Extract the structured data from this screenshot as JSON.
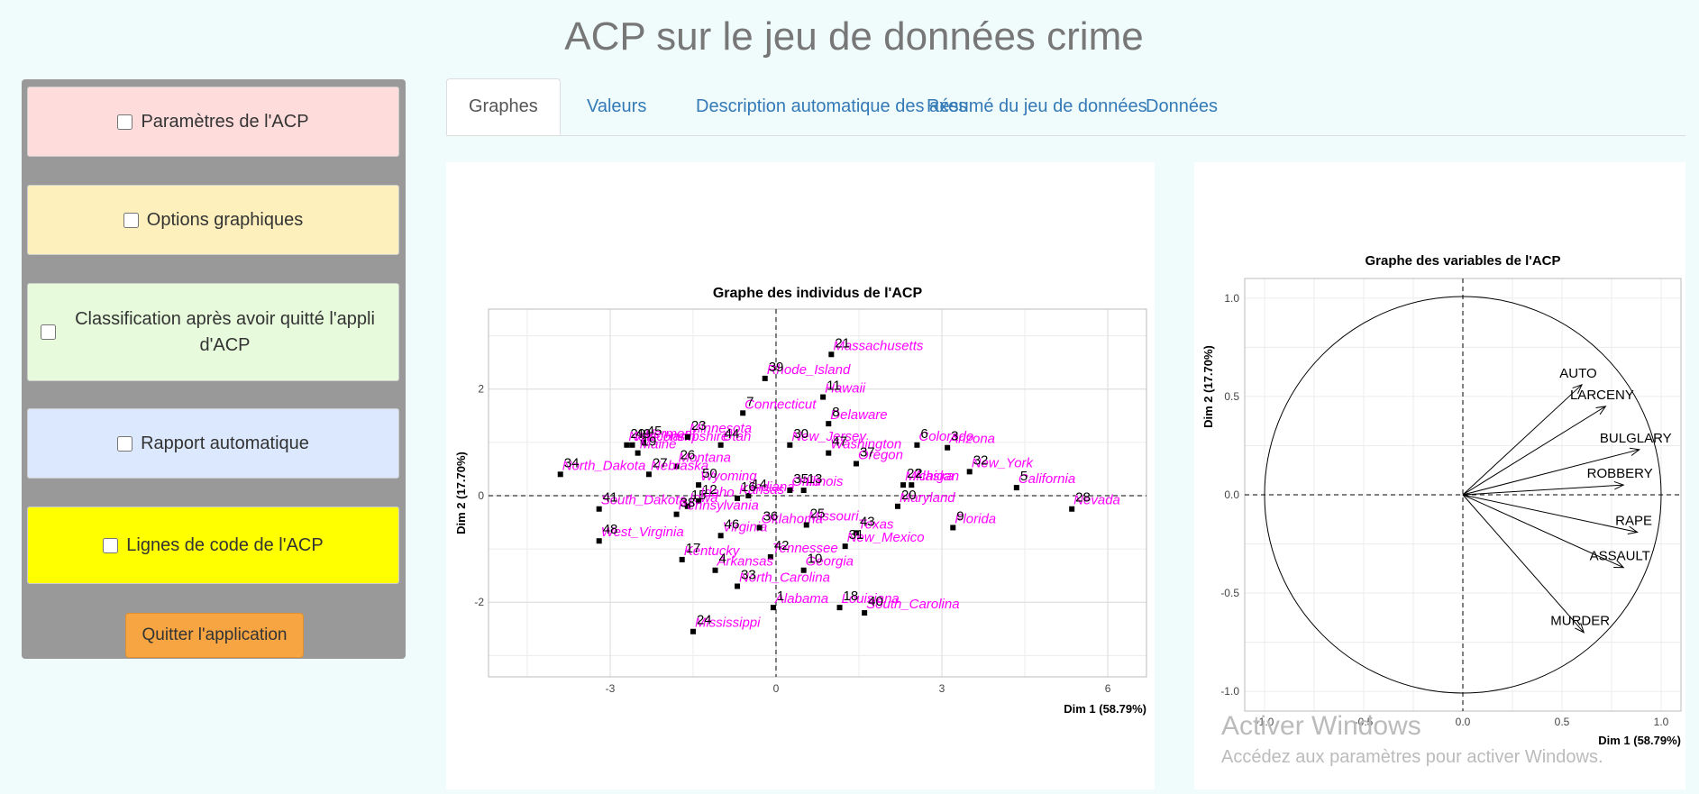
{
  "page": {
    "title": "ACP sur le jeu de données crime"
  },
  "sidebar": {
    "panels": [
      {
        "label": "Paramètres de l'ACP",
        "color": "#ffdcdc"
      },
      {
        "label": "Options graphiques",
        "color": "#fdf0bd"
      },
      {
        "label": "Classification après avoir quitté l'appli d'ACP",
        "color": "#e7fadc"
      },
      {
        "label": "Rapport automatique",
        "color": "#dce8fd"
      },
      {
        "label": "Lignes de code de l'ACP",
        "color": "#ffff00"
      }
    ],
    "quit_label": "Quitter l'application"
  },
  "tabs": [
    {
      "label": "Graphes",
      "active": true
    },
    {
      "label": "Valeurs",
      "active": false
    },
    {
      "label": "Description automatique des axes",
      "active": false
    },
    {
      "label": "Résumé du jeu de données",
      "active": false
    },
    {
      "label": "Données",
      "active": false
    }
  ],
  "watermark": {
    "line1": "Activer Windows",
    "line2": "Accédez aux paramètres pour activer Windows."
  },
  "chart_data": [
    {
      "type": "scatter",
      "title": "Graphe des individus de l'ACP",
      "xlabel": "Dim 1 (58.79%)",
      "ylabel": "Dim 2 (17.70%)",
      "xlim": [
        -5.2,
        6.7
      ],
      "ylim": [
        -3.4,
        3.5
      ],
      "xticks": [
        -3,
        0,
        3,
        6
      ],
      "yticks": [
        -2,
        0,
        2
      ],
      "grid": true,
      "label_color": "#ff00ff",
      "number_color": "#000000",
      "points": [
        {
          "id": "34",
          "name": "North_Dakota",
          "x": -3.9,
          "y": 0.4
        },
        {
          "id": "29",
          "name": "New_Hampshire",
          "x": -2.7,
          "y": 0.95
        },
        {
          "id": "45",
          "name": "Vermont",
          "x": -2.4,
          "y": 1.0
        },
        {
          "id": "49",
          "name": "Wisconsin",
          "x": -2.6,
          "y": 0.95
        },
        {
          "id": "23",
          "name": "Minnesota",
          "x": -1.6,
          "y": 1.1
        },
        {
          "id": "44",
          "name": "Utah",
          "x": -1.0,
          "y": 0.95
        },
        {
          "id": "19",
          "name": "Maine",
          "x": -2.5,
          "y": 0.8
        },
        {
          "id": "26",
          "name": "Montana",
          "x": -1.8,
          "y": 0.55
        },
        {
          "id": "27",
          "name": "Nebraska",
          "x": -2.3,
          "y": 0.4
        },
        {
          "id": "50",
          "name": "Wyoming",
          "x": -1.4,
          "y": 0.2
        },
        {
          "id": "15",
          "name": "Iowa",
          "x": -1.6,
          "y": -0.2
        },
        {
          "id": "14",
          "name": "Indiana",
          "x": -0.5,
          "y": 0.0
        },
        {
          "id": "12",
          "name": "Idaho",
          "x": -1.4,
          "y": -0.1
        },
        {
          "id": "16",
          "name": "Kansas",
          "x": -0.7,
          "y": -0.05
        },
        {
          "id": "41",
          "name": "South_Dakota",
          "x": -3.2,
          "y": -0.25
        },
        {
          "id": "38",
          "name": "Pennsylvania",
          "x": -1.8,
          "y": -0.35
        },
        {
          "id": "48",
          "name": "West_Virginia",
          "x": -3.2,
          "y": -0.85
        },
        {
          "id": "46",
          "name": "Virginia",
          "x": -1.0,
          "y": -0.75
        },
        {
          "id": "36",
          "name": "Oklahoma",
          "x": -0.3,
          "y": -0.6
        },
        {
          "id": "17",
          "name": "Kentucky",
          "x": -1.7,
          "y": -1.2
        },
        {
          "id": "42",
          "name": "Tennessee",
          "x": -0.1,
          "y": -1.15
        },
        {
          "id": "4",
          "name": "Arkansas",
          "x": -1.1,
          "y": -1.4
        },
        {
          "id": "33",
          "name": "North_Carolina",
          "x": -0.7,
          "y": -1.7
        },
        {
          "id": "1",
          "name": "Alabama",
          "x": -0.05,
          "y": -2.1
        },
        {
          "id": "24",
          "name": "Mississippi",
          "x": -1.5,
          "y": -2.55
        },
        {
          "id": "39",
          "name": "Rhode_Island",
          "x": -0.2,
          "y": 2.2
        },
        {
          "id": "7",
          "name": "Connecticut",
          "x": -0.6,
          "y": 1.55
        },
        {
          "id": "21",
          "name": "Massachusetts",
          "x": 1.0,
          "y": 2.65
        },
        {
          "id": "11",
          "name": "Hawaii",
          "x": 0.85,
          "y": 1.85
        },
        {
          "id": "8",
          "name": "Delaware",
          "x": 0.95,
          "y": 1.35
        },
        {
          "id": "30",
          "name": "New_Jersey",
          "x": 0.25,
          "y": 0.95
        },
        {
          "id": "47",
          "name": "Washington",
          "x": 0.95,
          "y": 0.8
        },
        {
          "id": "37",
          "name": "Oregon",
          "x": 1.45,
          "y": 0.6
        },
        {
          "id": "35",
          "name": "Ohio",
          "x": 0.25,
          "y": 0.1
        },
        {
          "id": "13",
          "name": "Illinois",
          "x": 0.5,
          "y": 0.1
        },
        {
          "id": "6",
          "name": "Colorado",
          "x": 2.55,
          "y": 0.95
        },
        {
          "id": "3",
          "name": "Arizona",
          "x": 3.1,
          "y": 0.9
        },
        {
          "id": "22",
          "name": "Michigan",
          "x": 2.3,
          "y": 0.2
        },
        {
          "id": "2",
          "name": "Alaska",
          "x": 2.45,
          "y": 0.2
        },
        {
          "id": "32",
          "name": "New_York",
          "x": 3.5,
          "y": 0.45
        },
        {
          "id": "5",
          "name": "California",
          "x": 4.35,
          "y": 0.15
        },
        {
          "id": "20",
          "name": "Maryland",
          "x": 2.2,
          "y": -0.2
        },
        {
          "id": "28",
          "name": "Nevada",
          "x": 5.35,
          "y": -0.25
        },
        {
          "id": "9",
          "name": "Florida",
          "x": 3.2,
          "y": -0.6
        },
        {
          "id": "25",
          "name": "Missouri",
          "x": 0.55,
          "y": -0.55
        },
        {
          "id": "43",
          "name": "Texas",
          "x": 1.45,
          "y": -0.7
        },
        {
          "id": "31",
          "name": "New_Mexico",
          "x": 1.25,
          "y": -0.95
        },
        {
          "id": "10",
          "name": "Georgia",
          "x": 0.5,
          "y": -1.4
        },
        {
          "id": "18",
          "name": "Louisiana",
          "x": 1.15,
          "y": -2.1
        },
        {
          "id": "40",
          "name": "South_Carolina",
          "x": 1.6,
          "y": -2.2
        }
      ]
    },
    {
      "type": "variables",
      "title": "Graphe des variables de l'ACP",
      "xlabel": "Dim 1 (58.79%)",
      "ylabel": "Dim 2 (17.70%)",
      "xlim": [
        -1.1,
        1.1
      ],
      "ylim": [
        -1.1,
        1.1
      ],
      "xticks": [
        -1.0,
        -0.5,
        0.0,
        0.5,
        1.0
      ],
      "yticks": [
        -1.0,
        -0.5,
        0.0,
        0.5,
        1.0
      ],
      "tick_labels_x": [
        "-1.0",
        "-0.5",
        "0.0",
        "0.5",
        "1.0"
      ],
      "tick_labels_y": [
        "-1.0",
        "-0.5",
        "0.0",
        "0.5",
        "1.0"
      ],
      "grid": true,
      "variables": [
        {
          "name": "AUTO",
          "x": 0.6,
          "y": 0.56
        },
        {
          "name": "LARCENY",
          "x": 0.72,
          "y": 0.45
        },
        {
          "name": "BULGLARY",
          "x": 0.89,
          "y": 0.23
        },
        {
          "name": "ROBBERY",
          "x": 0.81,
          "y": 0.05
        },
        {
          "name": "RAPE",
          "x": 0.88,
          "y": -0.19
        },
        {
          "name": "ASSAULT",
          "x": 0.81,
          "y": -0.37
        },
        {
          "name": "MURDER",
          "x": 0.61,
          "y": -0.7
        }
      ]
    }
  ]
}
